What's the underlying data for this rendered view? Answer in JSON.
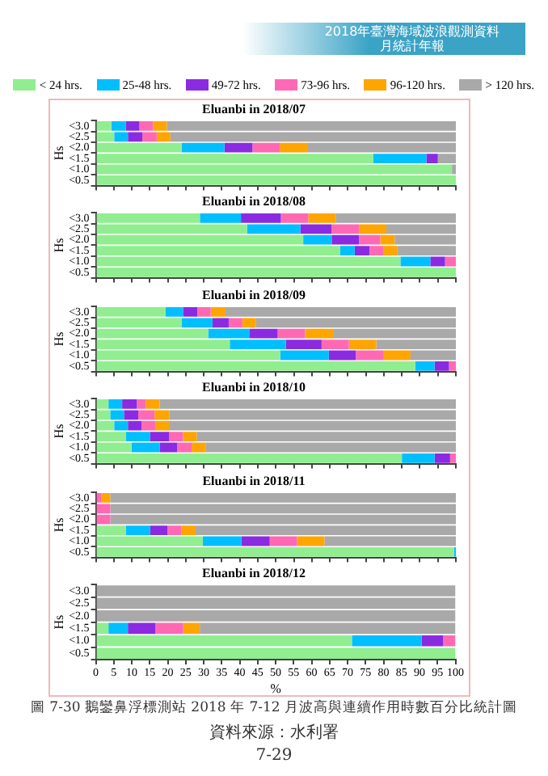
{
  "chart_data": [
    {
      "type": "bar",
      "orientation": "horizontal",
      "stacked": true,
      "title": "Eluanbi in 2018/07",
      "ylabel": "Hs",
      "legend": "top",
      "tick_labels": "y",
      "grid": false,
      "annotations": [
        "2018年臺灣海域波浪觀測資料月統計年報"
      ],
      "categories": [
        "<3.0",
        "<2.5",
        "<2.0",
        "<1.5",
        "<1.0",
        "<0.5"
      ],
      "xlim": [
        0,
        100
      ],
      "xticks": [
        0,
        5,
        10,
        15,
        20,
        25,
        30,
        35,
        40,
        45,
        50,
        55,
        60,
        65,
        70,
        75,
        80,
        85,
        90,
        95,
        100
      ],
      "series": [
        {
          "name": "< 24 hrs.",
          "color": "#90ee90",
          "values": [
            4.3,
            5.1,
            23.8,
            77,
            98.9,
            100
          ]
        },
        {
          "name": "25-48 hrs.",
          "color": "#00bfff",
          "values": [
            4,
            3.8,
            11.9,
            14.8,
            0,
            0
          ]
        },
        {
          "name": "49-72 hrs.",
          "color": "#8a2be2",
          "values": [
            3.8,
            4,
            7.8,
            3.2,
            0,
            0
          ]
        },
        {
          "name": "73-96 hrs.",
          "color": "#ff69b4",
          "values": [
            3.8,
            4,
            7.6,
            0,
            0,
            0
          ]
        },
        {
          "name": "96-120 hrs.",
          "color": "#ffa500",
          "values": [
            3.8,
            3.8,
            7.6,
            0,
            0,
            0
          ]
        },
        {
          "name": "> 120 hrs.",
          "color": "#a9a9a9",
          "values": [
            80.3,
            79.3,
            41.3,
            5,
            1.1,
            0
          ]
        }
      ]
    },
    {
      "type": "bar",
      "orientation": "horizontal",
      "stacked": true,
      "title": "Eluanbi in 2018/08",
      "ylabel": "Hs",
      "tick_labels": "y",
      "grid": false,
      "categories": [
        "<3.0",
        "<2.5",
        "<2.0",
        "<1.5",
        "<1.0",
        "<0.5"
      ],
      "xlim": [
        0,
        100
      ],
      "xticks": [
        0,
        5,
        10,
        15,
        20,
        25,
        30,
        35,
        40,
        45,
        50,
        55,
        60,
        65,
        70,
        75,
        80,
        85,
        90,
        95,
        100
      ],
      "series": [
        {
          "color": "#90ee90",
          "values": [
            28.9,
            42,
            57.6,
            67.9,
            84.6,
            100
          ]
        },
        {
          "color": "#00bfff",
          "values": [
            11.4,
            14.8,
            7.9,
            4,
            8.3,
            0
          ]
        },
        {
          "color": "#8a2be2",
          "values": [
            11.1,
            8.7,
            7.6,
            4.1,
            4.1,
            0
          ]
        },
        {
          "color": "#ff69b4",
          "values": [
            7.6,
            7.6,
            5.9,
            3.8,
            3,
            0
          ]
        },
        {
          "color": "#ffa500",
          "values": [
            7.6,
            7.6,
            4,
            4,
            0,
            0
          ]
        },
        {
          "color": "#a9a9a9",
          "values": [
            33.4,
            19.3,
            17,
            16.2,
            0,
            0
          ]
        }
      ]
    },
    {
      "type": "bar",
      "orientation": "horizontal",
      "stacked": true,
      "title": "Eluanbi in 2018/09",
      "ylabel": "Hs",
      "tick_labels": "y",
      "grid": false,
      "categories": [
        "<3.0",
        "<2.5",
        "<2.0",
        "<1.5",
        "<1.0",
        "<0.5"
      ],
      "xlim": [
        0,
        100
      ],
      "xticks": [
        0,
        5,
        10,
        15,
        20,
        25,
        30,
        35,
        40,
        45,
        50,
        55,
        60,
        65,
        70,
        75,
        80,
        85,
        90,
        95,
        100
      ],
      "series": [
        {
          "color": "#90ee90",
          "values": [
            19.4,
            23.8,
            31.2,
            37.2,
            51.2,
            88.7
          ]
        },
        {
          "color": "#00bfff",
          "values": [
            4.8,
            8.6,
            11.4,
            15.6,
            13.5,
            5.4
          ]
        },
        {
          "color": "#8a2be2",
          "values": [
            4,
            4.5,
            7.9,
            9.9,
            7.5,
            4
          ]
        },
        {
          "color": "#ff69b4",
          "values": [
            3.7,
            3.8,
            7.6,
            7.6,
            7.6,
            1.9
          ]
        },
        {
          "color": "#ffa500",
          "values": [
            4.1,
            3.8,
            7.8,
            7.6,
            7.6,
            0
          ]
        },
        {
          "color": "#a9a9a9",
          "values": [
            64,
            55.5,
            34.1,
            22.1,
            12.6,
            0
          ]
        }
      ]
    },
    {
      "type": "bar",
      "orientation": "horizontal",
      "stacked": true,
      "title": "Eluanbi in 2018/10",
      "ylabel": "Hs",
      "tick_labels": "y",
      "grid": false,
      "categories": [
        "<3.0",
        "<2.5",
        "<2.0",
        "<1.5",
        "<1.0",
        "<0.5"
      ],
      "xlim": [
        0,
        100
      ],
      "xticks": [
        0,
        5,
        10,
        15,
        20,
        25,
        30,
        35,
        40,
        45,
        50,
        55,
        60,
        65,
        70,
        75,
        80,
        85,
        90,
        95,
        100
      ],
      "series": [
        {
          "color": "#90ee90",
          "values": [
            3.5,
            4,
            5.1,
            8.3,
            9.9,
            85
          ]
        },
        {
          "color": "#00bfff",
          "values": [
            3.8,
            3.8,
            3.8,
            6.7,
            7.9,
            9.1
          ]
        },
        {
          "color": "#8a2be2",
          "values": [
            4.1,
            4,
            3.8,
            5.4,
            4.8,
            4.3
          ]
        },
        {
          "color": "#ff69b4",
          "values": [
            2.5,
            4.5,
            3.8,
            3.8,
            4,
            1.6
          ]
        },
        {
          "color": "#ffa500",
          "values": [
            3.8,
            4.1,
            3.8,
            3.8,
            4,
            0
          ]
        },
        {
          "color": "#a9a9a9",
          "values": [
            82.3,
            79.6,
            79.7,
            72,
            69.4,
            0
          ]
        }
      ]
    },
    {
      "type": "bar",
      "orientation": "horizontal",
      "stacked": true,
      "title": "Eluanbi in 2018/11",
      "ylabel": "Hs",
      "tick_labels": "y",
      "grid": false,
      "categories": [
        "<3.0",
        "<2.5",
        "<2.0",
        "<1.5",
        "<1.0",
        "<0.5"
      ],
      "xlim": [
        0,
        100
      ],
      "xticks": [
        0,
        5,
        10,
        15,
        20,
        25,
        30,
        35,
        40,
        45,
        50,
        55,
        60,
        65,
        70,
        75,
        80,
        85,
        90,
        95,
        100
      ],
      "series": [
        {
          "color": "#90ee90",
          "values": [
            0,
            0,
            0,
            8.3,
            29.7,
            99.5
          ]
        },
        {
          "color": "#00bfff",
          "values": [
            0,
            0,
            0,
            6.8,
            10.7,
            0.5
          ]
        },
        {
          "color": "#8a2be2",
          "values": [
            0,
            0,
            0,
            4.8,
            7.9,
            0
          ]
        },
        {
          "color": "#ff69b4",
          "values": [
            1.6,
            4,
            4,
            3.8,
            7.6,
            0
          ]
        },
        {
          "color": "#ffa500",
          "values": [
            2.4,
            0,
            0,
            4,
            7.6,
            0
          ]
        },
        {
          "color": "#a9a9a9",
          "values": [
            96,
            96,
            96,
            72.3,
            36.5,
            0
          ]
        }
      ]
    },
    {
      "type": "bar",
      "orientation": "horizontal",
      "stacked": true,
      "title": "Eluanbi in 2018/12",
      "ylabel": "Hs",
      "xlabel": "%",
      "grid": false,
      "annotations": [
        "圖 7-30 鵝鑾鼻浮標測站 2018 年 7-12 月波高與連續作用時數百分比統計圖",
        "資料來源：水利署",
        "7-29"
      ],
      "categories": [
        "<3.0",
        "<2.5",
        "<2.0",
        "<1.5",
        "<1.0",
        "<0.5"
      ],
      "xlim": [
        0,
        100
      ],
      "xticks": [
        0,
        5,
        10,
        15,
        20,
        25,
        30,
        35,
        40,
        45,
        50,
        55,
        60,
        65,
        70,
        75,
        80,
        85,
        90,
        95,
        100
      ],
      "series": [
        {
          "color": "#90ee90",
          "values": [
            0,
            0,
            0,
            3.5,
            71.2,
            100
          ]
        },
        {
          "color": "#00bfff",
          "values": [
            0,
            0,
            0,
            5.4,
            19.4,
            0
          ]
        },
        {
          "color": "#8a2be2",
          "values": [
            0,
            0,
            0,
            7.6,
            6,
            0
          ]
        },
        {
          "color": "#ff69b4",
          "values": [
            0,
            0,
            0,
            7.8,
            3.4,
            0
          ]
        },
        {
          "color": "#ffa500",
          "values": [
            0,
            0,
            0,
            4.6,
            0,
            0
          ]
        },
        {
          "color": "#a9a9a9",
          "values": [
            100,
            100,
            100,
            71.1,
            0,
            0
          ]
        }
      ]
    }
  ]
}
